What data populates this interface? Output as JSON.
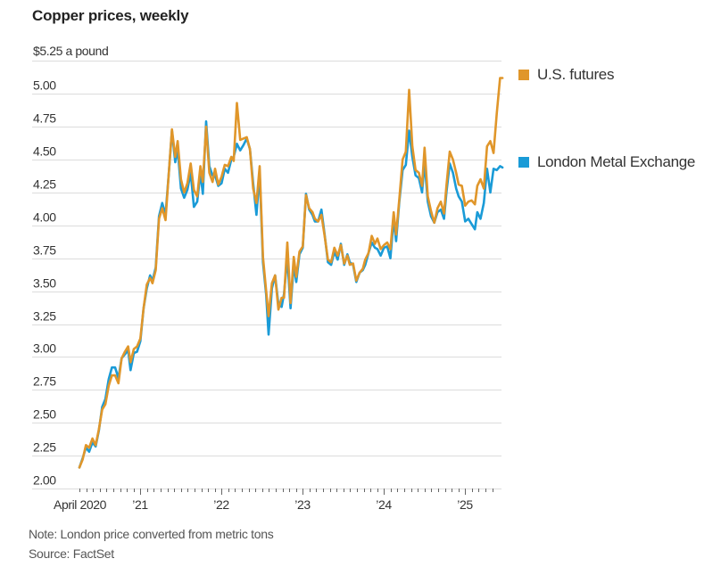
{
  "chart_data": {
    "type": "line",
    "title": "Copper prices, weekly",
    "ylabel": "$5.25 a pound",
    "xlabel": "",
    "ylim": [
      2.0,
      5.25
    ],
    "xlim": [
      2020.25,
      2025.25
    ],
    "yticks": [
      2.0,
      2.25,
      2.5,
      2.75,
      3.0,
      3.25,
      3.5,
      3.75,
      4.0,
      4.25,
      4.5,
      4.75,
      5.0,
      5.25
    ],
    "ytick_labels": [
      "2.00",
      "2.25",
      "2.50",
      "2.75",
      "3.00",
      "3.25",
      "3.50",
      "3.75",
      "4.00",
      "4.25",
      "4.50",
      "4.75",
      "5.00",
      "$5.25 a pound"
    ],
    "xticks": [
      2020.25,
      2021,
      2022,
      2023,
      2024,
      2025
    ],
    "xtick_labels": [
      "April 2020",
      "’21",
      "’22",
      "’23",
      "’24",
      "’25"
    ],
    "grid": true,
    "legend_position": "right",
    "series": [
      {
        "name": "U.S. futures",
        "color": "#e0962a",
        "points": [
          [
            2020.25,
            2.16
          ],
          [
            2020.29,
            2.22
          ],
          [
            2020.33,
            2.33
          ],
          [
            2020.37,
            2.31
          ],
          [
            2020.41,
            2.38
          ],
          [
            2020.45,
            2.33
          ],
          [
            2020.49,
            2.45
          ],
          [
            2020.53,
            2.6
          ],
          [
            2020.57,
            2.64
          ],
          [
            2020.61,
            2.78
          ],
          [
            2020.65,
            2.86
          ],
          [
            2020.69,
            2.86
          ],
          [
            2020.73,
            2.8
          ],
          [
            2020.77,
            2.99
          ],
          [
            2020.81,
            3.04
          ],
          [
            2020.85,
            3.08
          ],
          [
            2020.88,
            2.96
          ],
          [
            2020.92,
            3.06
          ],
          [
            2020.96,
            3.08
          ],
          [
            2021.0,
            3.14
          ],
          [
            2021.04,
            3.37
          ],
          [
            2021.08,
            3.55
          ],
          [
            2021.12,
            3.6
          ],
          [
            2021.15,
            3.56
          ],
          [
            2021.19,
            3.66
          ],
          [
            2021.23,
            4.05
          ],
          [
            2021.27,
            4.13
          ],
          [
            2021.31,
            4.04
          ],
          [
            2021.35,
            4.39
          ],
          [
            2021.39,
            4.73
          ],
          [
            2021.43,
            4.52
          ],
          [
            2021.46,
            4.64
          ],
          [
            2021.5,
            4.35
          ],
          [
            2021.54,
            4.25
          ],
          [
            2021.58,
            4.32
          ],
          [
            2021.62,
            4.47
          ],
          [
            2021.66,
            4.27
          ],
          [
            2021.7,
            4.22
          ],
          [
            2021.74,
            4.45
          ],
          [
            2021.77,
            4.33
          ],
          [
            2021.81,
            4.75
          ],
          [
            2021.85,
            4.4
          ],
          [
            2021.89,
            4.33
          ],
          [
            2021.92,
            4.43
          ],
          [
            2021.96,
            4.31
          ],
          [
            2022.0,
            4.37
          ],
          [
            2022.04,
            4.46
          ],
          [
            2022.08,
            4.45
          ],
          [
            2022.12,
            4.52
          ],
          [
            2022.15,
            4.49
          ],
          [
            2022.19,
            4.93
          ],
          [
            2022.23,
            4.65
          ],
          [
            2022.27,
            4.66
          ],
          [
            2022.31,
            4.67
          ],
          [
            2022.35,
            4.58
          ],
          [
            2022.39,
            4.28
          ],
          [
            2022.43,
            4.17
          ],
          [
            2022.47,
            4.45
          ],
          [
            2022.51,
            3.76
          ],
          [
            2022.55,
            3.5
          ],
          [
            2022.58,
            3.31
          ],
          [
            2022.62,
            3.56
          ],
          [
            2022.66,
            3.62
          ],
          [
            2022.7,
            3.36
          ],
          [
            2022.74,
            3.45
          ],
          [
            2022.77,
            3.45
          ],
          [
            2022.81,
            3.87
          ],
          [
            2022.85,
            3.41
          ],
          [
            2022.89,
            3.76
          ],
          [
            2022.92,
            3.61
          ],
          [
            2022.96,
            3.8
          ],
          [
            2023.0,
            3.84
          ],
          [
            2023.04,
            4.23
          ],
          [
            2023.08,
            4.13
          ],
          [
            2023.12,
            4.1
          ],
          [
            2023.15,
            4.05
          ],
          [
            2023.19,
            4.03
          ],
          [
            2023.23,
            4.08
          ],
          [
            2023.27,
            3.92
          ],
          [
            2023.31,
            3.74
          ],
          [
            2023.35,
            3.72
          ],
          [
            2023.39,
            3.83
          ],
          [
            2023.43,
            3.77
          ],
          [
            2023.47,
            3.85
          ],
          [
            2023.51,
            3.71
          ],
          [
            2023.55,
            3.77
          ],
          [
            2023.58,
            3.7
          ],
          [
            2023.62,
            3.71
          ],
          [
            2023.66,
            3.58
          ],
          [
            2023.7,
            3.64
          ],
          [
            2023.74,
            3.67
          ],
          [
            2023.77,
            3.74
          ],
          [
            2023.81,
            3.79
          ],
          [
            2023.85,
            3.92
          ],
          [
            2023.89,
            3.86
          ],
          [
            2023.92,
            3.9
          ],
          [
            2023.96,
            3.82
          ],
          [
            2024.0,
            3.85
          ],
          [
            2024.04,
            3.87
          ],
          [
            2024.08,
            3.82
          ],
          [
            2024.12,
            4.1
          ],
          [
            2024.15,
            3.93
          ],
          [
            2024.19,
            4.2
          ],
          [
            2024.23,
            4.5
          ],
          [
            2024.27,
            4.56
          ],
          [
            2024.31,
            5.03
          ],
          [
            2024.35,
            4.6
          ],
          [
            2024.39,
            4.42
          ],
          [
            2024.43,
            4.4
          ],
          [
            2024.47,
            4.3
          ],
          [
            2024.5,
            4.59
          ],
          [
            2024.54,
            4.22
          ],
          [
            2024.58,
            4.11
          ],
          [
            2024.62,
            4.02
          ],
          [
            2024.66,
            4.13
          ],
          [
            2024.7,
            4.18
          ],
          [
            2024.74,
            4.09
          ],
          [
            2024.77,
            4.3
          ],
          [
            2024.81,
            4.56
          ],
          [
            2024.85,
            4.5
          ],
          [
            2024.89,
            4.4
          ],
          [
            2024.92,
            4.31
          ],
          [
            2024.96,
            4.3
          ],
          [
            2025.0,
            4.15
          ],
          [
            2025.04,
            4.18
          ],
          [
            2025.08,
            4.19
          ],
          [
            2025.12,
            4.16
          ],
          [
            2025.15,
            4.3
          ],
          [
            2025.19,
            4.35
          ],
          [
            2025.23,
            4.28
          ],
          [
            2025.27,
            4.6
          ],
          [
            2025.31,
            4.64
          ],
          [
            2025.35,
            4.55
          ],
          [
            2025.39,
            4.85
          ],
          [
            2025.43,
            5.12
          ],
          [
            2025.46,
            5.12
          ]
        ]
      },
      {
        "name": "London Metal Exchange",
        "color": "#1a9bd7",
        "points": [
          [
            2020.25,
            2.16
          ],
          [
            2020.29,
            2.23
          ],
          [
            2020.33,
            2.31
          ],
          [
            2020.37,
            2.28
          ],
          [
            2020.41,
            2.35
          ],
          [
            2020.45,
            2.32
          ],
          [
            2020.49,
            2.44
          ],
          [
            2020.53,
            2.62
          ],
          [
            2020.57,
            2.68
          ],
          [
            2020.61,
            2.83
          ],
          [
            2020.65,
            2.92
          ],
          [
            2020.69,
            2.92
          ],
          [
            2020.73,
            2.84
          ],
          [
            2020.77,
            2.99
          ],
          [
            2020.81,
            3.02
          ],
          [
            2020.85,
            3.05
          ],
          [
            2020.88,
            2.9
          ],
          [
            2020.92,
            3.03
          ],
          [
            2020.96,
            3.04
          ],
          [
            2021.0,
            3.12
          ],
          [
            2021.04,
            3.37
          ],
          [
            2021.08,
            3.52
          ],
          [
            2021.12,
            3.62
          ],
          [
            2021.15,
            3.58
          ],
          [
            2021.19,
            3.68
          ],
          [
            2021.23,
            4.07
          ],
          [
            2021.27,
            4.17
          ],
          [
            2021.31,
            4.08
          ],
          [
            2021.35,
            4.39
          ],
          [
            2021.39,
            4.72
          ],
          [
            2021.43,
            4.48
          ],
          [
            2021.46,
            4.58
          ],
          [
            2021.5,
            4.28
          ],
          [
            2021.54,
            4.21
          ],
          [
            2021.58,
            4.27
          ],
          [
            2021.62,
            4.4
          ],
          [
            2021.66,
            4.14
          ],
          [
            2021.7,
            4.18
          ],
          [
            2021.74,
            4.4
          ],
          [
            2021.77,
            4.24
          ],
          [
            2021.81,
            4.79
          ],
          [
            2021.85,
            4.45
          ],
          [
            2021.89,
            4.38
          ],
          [
            2021.92,
            4.38
          ],
          [
            2021.96,
            4.3
          ],
          [
            2022.0,
            4.32
          ],
          [
            2022.04,
            4.43
          ],
          [
            2022.08,
            4.4
          ],
          [
            2022.12,
            4.5
          ],
          [
            2022.15,
            4.52
          ],
          [
            2022.19,
            4.62
          ],
          [
            2022.23,
            4.57
          ],
          [
            2022.27,
            4.61
          ],
          [
            2022.31,
            4.66
          ],
          [
            2022.35,
            4.58
          ],
          [
            2022.39,
            4.32
          ],
          [
            2022.43,
            4.08
          ],
          [
            2022.47,
            4.4
          ],
          [
            2022.51,
            3.72
          ],
          [
            2022.55,
            3.47
          ],
          [
            2022.58,
            3.17
          ],
          [
            2022.62,
            3.52
          ],
          [
            2022.66,
            3.62
          ],
          [
            2022.7,
            3.4
          ],
          [
            2022.74,
            3.38
          ],
          [
            2022.77,
            3.48
          ],
          [
            2022.81,
            3.76
          ],
          [
            2022.85,
            3.37
          ],
          [
            2022.89,
            3.7
          ],
          [
            2022.92,
            3.57
          ],
          [
            2022.96,
            3.78
          ],
          [
            2023.0,
            3.83
          ],
          [
            2023.04,
            4.24
          ],
          [
            2023.08,
            4.12
          ],
          [
            2023.12,
            4.08
          ],
          [
            2023.15,
            4.03
          ],
          [
            2023.19,
            4.03
          ],
          [
            2023.23,
            4.12
          ],
          [
            2023.27,
            3.93
          ],
          [
            2023.31,
            3.72
          ],
          [
            2023.35,
            3.7
          ],
          [
            2023.39,
            3.8
          ],
          [
            2023.43,
            3.74
          ],
          [
            2023.47,
            3.86
          ],
          [
            2023.51,
            3.7
          ],
          [
            2023.55,
            3.78
          ],
          [
            2023.58,
            3.72
          ],
          [
            2023.62,
            3.7
          ],
          [
            2023.66,
            3.57
          ],
          [
            2023.7,
            3.64
          ],
          [
            2023.74,
            3.66
          ],
          [
            2023.77,
            3.7
          ],
          [
            2023.81,
            3.79
          ],
          [
            2023.85,
            3.87
          ],
          [
            2023.89,
            3.83
          ],
          [
            2023.92,
            3.82
          ],
          [
            2023.96,
            3.77
          ],
          [
            2024.0,
            3.83
          ],
          [
            2024.04,
            3.84
          ],
          [
            2024.08,
            3.75
          ],
          [
            2024.12,
            4.05
          ],
          [
            2024.15,
            3.88
          ],
          [
            2024.19,
            4.18
          ],
          [
            2024.23,
            4.42
          ],
          [
            2024.27,
            4.46
          ],
          [
            2024.31,
            4.72
          ],
          [
            2024.35,
            4.52
          ],
          [
            2024.39,
            4.38
          ],
          [
            2024.43,
            4.36
          ],
          [
            2024.47,
            4.25
          ],
          [
            2024.5,
            4.48
          ],
          [
            2024.54,
            4.18
          ],
          [
            2024.58,
            4.07
          ],
          [
            2024.62,
            4.02
          ],
          [
            2024.66,
            4.1
          ],
          [
            2024.7,
            4.12
          ],
          [
            2024.74,
            4.05
          ],
          [
            2024.77,
            4.25
          ],
          [
            2024.81,
            4.47
          ],
          [
            2024.85,
            4.4
          ],
          [
            2024.89,
            4.28
          ],
          [
            2024.92,
            4.22
          ],
          [
            2024.96,
            4.18
          ],
          [
            2025.0,
            4.03
          ],
          [
            2025.04,
            4.05
          ],
          [
            2025.08,
            4.01
          ],
          [
            2025.12,
            3.97
          ],
          [
            2025.15,
            4.1
          ],
          [
            2025.19,
            4.05
          ],
          [
            2025.23,
            4.17
          ],
          [
            2025.27,
            4.43
          ],
          [
            2025.31,
            4.25
          ],
          [
            2025.35,
            4.43
          ],
          [
            2025.39,
            4.42
          ],
          [
            2025.43,
            4.45
          ],
          [
            2025.46,
            4.44
          ]
        ]
      }
    ],
    "notes": [
      "Note: London price converted from metric tons",
      "Source: FactSet"
    ]
  }
}
